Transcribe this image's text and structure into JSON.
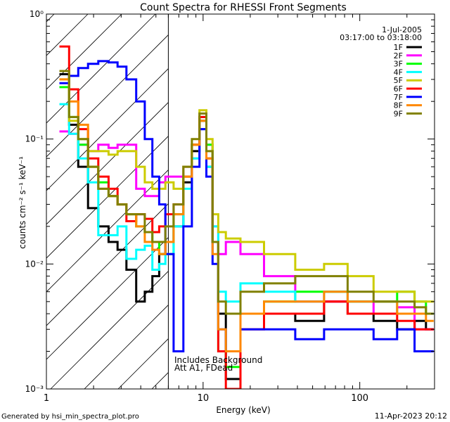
{
  "chart_data": {
    "type": "line",
    "title": "Count Spectra for RHESSI Front Segments",
    "xlabel": "Energy (keV)",
    "ylabel": "counts cm⁻² s⁻¹ keV⁻¹",
    "xscale": "log",
    "yscale": "log",
    "xlim": [
      1,
      300
    ],
    "ylim": [
      0.001,
      1
    ],
    "x_ticks": [
      {
        "value": 1,
        "label": "1"
      },
      {
        "value": 10,
        "label": "10"
      },
      {
        "value": 100,
        "label": "100"
      }
    ],
    "y_ticks": [
      {
        "value": 0.001,
        "label": "10⁻³"
      },
      {
        "value": 0.01,
        "label": "10⁻²"
      },
      {
        "value": 0.1,
        "label": "10⁻¹"
      },
      {
        "value": 1,
        "label": "10⁰"
      }
    ],
    "date": "1-Jul-2005",
    "time_range": "03:17:00 to 03:18:00",
    "attenuator_boundary_keV": 6,
    "annotations": [
      "Includes Background",
      "Att A1, FDead"
    ],
    "footer_left": "Generated by hsi_min_spectra_plot.pro",
    "footer_right": "11-Apr-2023 20:12",
    "legend_position": "top-right",
    "series": [
      {
        "name": "1F",
        "color": "#000000",
        "x": [
          1.3,
          1.5,
          1.7,
          2.0,
          2.3,
          2.7,
          3.0,
          3.5,
          4.0,
          4.5,
          5.0,
          5.5,
          6.0,
          7.0,
          8.0,
          9.0,
          10.0,
          11.0,
          12.0,
          13.0,
          15.0,
          20.0,
          30.0,
          50.0,
          70.0,
          100.0,
          150.0,
          200.0,
          250.0,
          280.0
        ],
        "y": [
          0.33,
          0.13,
          0.06,
          0.028,
          0.02,
          0.015,
          0.013,
          0.009,
          0.005,
          0.006,
          0.008,
          0.012,
          0.015,
          0.02,
          0.045,
          0.08,
          0.14,
          0.06,
          0.015,
          0.004,
          0.0012,
          0.004,
          0.004,
          0.0035,
          0.005,
          0.004,
          0.0035,
          0.003,
          0.0035,
          0.003
        ]
      },
      {
        "name": "2F",
        "color": "#ff00ff",
        "x": [
          1.3,
          1.5,
          1.7,
          2.0,
          2.3,
          2.7,
          3.0,
          3.5,
          4.0,
          4.5,
          5.0,
          5.5,
          6.0,
          7.0,
          8.0,
          9.0,
          10.0,
          11.0,
          12.0,
          13.0,
          15.0,
          20.0,
          30.0,
          50.0,
          70.0,
          100.0,
          150.0,
          200.0,
          250.0,
          280.0
        ],
        "y": [
          0.115,
          0.11,
          0.09,
          0.08,
          0.09,
          0.085,
          0.09,
          0.09,
          0.04,
          0.035,
          0.035,
          0.045,
          0.05,
          0.05,
          0.06,
          0.07,
          0.12,
          0.09,
          0.02,
          0.012,
          0.015,
          0.012,
          0.008,
          0.005,
          0.005,
          0.005,
          0.004,
          0.0045,
          0.003,
          0.003
        ]
      },
      {
        "name": "3F",
        "color": "#00ff00",
        "x": [
          1.3,
          1.5,
          1.7,
          2.0,
          2.3,
          2.7,
          3.0,
          3.5,
          4.0,
          4.5,
          5.0,
          5.5,
          6.0,
          7.0,
          8.0,
          9.0,
          10.0,
          11.0,
          12.0,
          13.0,
          15.0,
          20.0,
          30.0,
          50.0,
          70.0,
          100.0,
          150.0,
          200.0,
          250.0,
          280.0
        ],
        "y": [
          0.26,
          0.15,
          0.09,
          0.06,
          0.045,
          0.035,
          0.03,
          0.025,
          0.02,
          0.018,
          0.015,
          0.012,
          0.012,
          0.025,
          0.05,
          0.09,
          0.15,
          0.09,
          0.015,
          0.002,
          0.0015,
          0.004,
          0.005,
          0.006,
          0.006,
          0.005,
          0.005,
          0.006,
          0.005,
          0.004
        ]
      },
      {
        "name": "4F",
        "color": "#00ffff",
        "x": [
          1.3,
          1.5,
          1.7,
          2.0,
          2.3,
          2.7,
          3.0,
          3.5,
          4.0,
          4.5,
          5.0,
          5.5,
          6.0,
          7.0,
          8.0,
          9.0,
          10.0,
          11.0,
          12.0,
          13.0,
          15.0,
          20.0,
          30.0,
          50.0,
          70.0,
          100.0,
          150.0,
          200.0,
          250.0,
          280.0
        ],
        "y": [
          0.19,
          0.11,
          0.07,
          0.045,
          0.017,
          0.017,
          0.02,
          0.011,
          0.013,
          0.014,
          0.009,
          0.01,
          0.012,
          0.02,
          0.04,
          0.07,
          0.12,
          0.06,
          0.02,
          0.006,
          0.005,
          0.007,
          0.006,
          0.005,
          0.006,
          0.005,
          0.005,
          0.004,
          0.004,
          0.004
        ]
      },
      {
        "name": "5F",
        "color": "#cccc00",
        "x": [
          1.3,
          1.5,
          1.7,
          2.0,
          2.3,
          2.7,
          3.0,
          3.5,
          4.0,
          4.5,
          5.0,
          5.5,
          6.0,
          7.0,
          8.0,
          9.0,
          10.0,
          11.0,
          12.0,
          13.0,
          15.0,
          20.0,
          30.0,
          50.0,
          70.0,
          100.0,
          150.0,
          200.0,
          250.0,
          280.0
        ],
        "y": [
          0.3,
          0.14,
          0.1,
          0.08,
          0.08,
          0.075,
          0.08,
          0.08,
          0.06,
          0.045,
          0.04,
          0.04,
          0.045,
          0.04,
          0.06,
          0.09,
          0.17,
          0.1,
          0.025,
          0.018,
          0.016,
          0.015,
          0.012,
          0.009,
          0.01,
          0.008,
          0.006,
          0.006,
          0.005,
          0.005
        ]
      },
      {
        "name": "6F",
        "color": "#ff0000",
        "x": [
          1.3,
          1.5,
          1.7,
          2.0,
          2.3,
          2.7,
          3.0,
          3.5,
          4.0,
          4.5,
          5.0,
          5.5,
          6.0,
          7.0,
          8.0,
          9.0,
          10.0,
          11.0,
          12.0,
          13.0,
          15.0,
          20.0,
          30.0,
          50.0,
          70.0,
          100.0,
          150.0,
          200.0,
          250.0,
          280.0
        ],
        "y": [
          0.55,
          0.25,
          0.12,
          0.07,
          0.05,
          0.04,
          0.03,
          0.022,
          0.025,
          0.023,
          0.018,
          0.02,
          0.025,
          0.03,
          0.05,
          0.09,
          0.15,
          0.07,
          0.015,
          0.002,
          0.001,
          0.003,
          0.004,
          0.004,
          0.005,
          0.004,
          0.004,
          0.0035,
          0.003,
          0.003
        ]
      },
      {
        "name": "7F",
        "color": "#0000ff",
        "x": [
          1.3,
          1.5,
          1.7,
          2.0,
          2.3,
          2.7,
          3.0,
          3.5,
          4.0,
          4.5,
          5.0,
          5.5,
          6.0,
          7.0,
          8.0,
          9.0,
          10.0,
          11.0,
          12.0,
          13.0,
          15.0,
          20.0,
          30.0,
          50.0,
          70.0,
          100.0,
          150.0,
          200.0,
          250.0,
          280.0
        ],
        "y": [
          0.28,
          0.32,
          0.37,
          0.4,
          0.42,
          0.41,
          0.38,
          0.3,
          0.2,
          0.1,
          0.05,
          0.03,
          0.012,
          0.002,
          0.02,
          0.06,
          0.12,
          0.05,
          0.01,
          0.003,
          0.002,
          0.003,
          0.003,
          0.0025,
          0.003,
          0.003,
          0.0025,
          0.003,
          0.002,
          0.002
        ]
      },
      {
        "name": "8F",
        "color": "#ff8800",
        "x": [
          1.3,
          1.5,
          1.7,
          2.0,
          2.3,
          2.7,
          3.0,
          3.5,
          4.0,
          4.5,
          5.0,
          5.5,
          6.0,
          7.0,
          8.0,
          9.0,
          10.0,
          11.0,
          12.0,
          13.0,
          15.0,
          20.0,
          30.0,
          50.0,
          70.0,
          100.0,
          150.0,
          200.0,
          250.0,
          280.0
        ],
        "y": [
          0.3,
          0.2,
          0.13,
          0.06,
          0.04,
          0.035,
          0.03,
          0.025,
          0.02,
          0.015,
          0.013,
          0.012,
          0.015,
          0.025,
          0.05,
          0.09,
          0.14,
          0.07,
          0.012,
          0.003,
          0.002,
          0.004,
          0.005,
          0.005,
          0.006,
          0.005,
          0.005,
          0.004,
          0.004,
          0.0035
        ]
      },
      {
        "name": "9F",
        "color": "#808000",
        "x": [
          1.3,
          1.5,
          1.7,
          2.0,
          2.3,
          2.7,
          3.0,
          3.5,
          4.0,
          4.5,
          5.0,
          5.5,
          6.0,
          7.0,
          8.0,
          9.0,
          10.0,
          11.0,
          12.0,
          13.0,
          15.0,
          20.0,
          30.0,
          50.0,
          70.0,
          100.0,
          150.0,
          200.0,
          250.0,
          280.0
        ],
        "y": [
          0.35,
          0.15,
          0.1,
          0.06,
          0.04,
          0.035,
          0.03,
          0.025,
          0.025,
          0.018,
          0.015,
          0.015,
          0.02,
          0.03,
          0.06,
          0.1,
          0.16,
          0.08,
          0.015,
          0.005,
          0.004,
          0.006,
          0.007,
          0.008,
          0.008,
          0.006,
          0.005,
          0.005,
          0.0045,
          0.004
        ]
      }
    ]
  }
}
